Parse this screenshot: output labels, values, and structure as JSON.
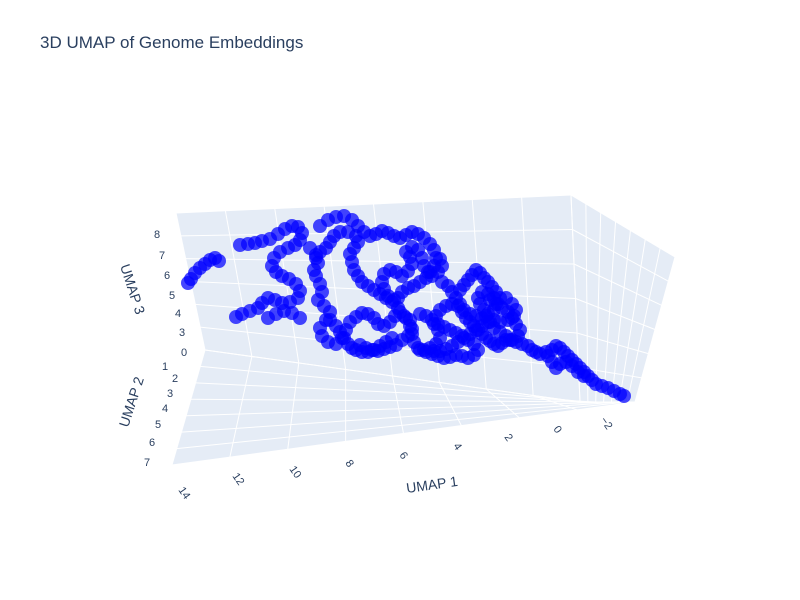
{
  "chart_data": {
    "type": "scatter3d",
    "title": "3D UMAP of Genome Embeddings",
    "axes": {
      "x": {
        "label": "UMAP 1",
        "ticks": [
          "14",
          "12",
          "10",
          "8",
          "6",
          "4",
          "2",
          "0",
          "−2"
        ]
      },
      "y": {
        "label": "UMAP 2",
        "ticks": [
          "1",
          "2",
          "3",
          "4",
          "5",
          "6",
          "7"
        ]
      },
      "z": {
        "label": "UMAP 3",
        "ticks": [
          "0",
          "3",
          "4",
          "5",
          "6",
          "7",
          "8"
        ]
      }
    },
    "marker_color": "#0000ff",
    "scene_background": "#e5ecf6",
    "grid_color": "#ffffff",
    "legend": "none",
    "projected_points": [
      [
        188,
        283
      ],
      [
        191,
        279
      ],
      [
        195,
        273
      ],
      [
        200,
        268
      ],
      [
        205,
        264
      ],
      [
        210,
        260
      ],
      [
        215,
        258
      ],
      [
        219,
        261
      ],
      [
        240,
        245
      ],
      [
        248,
        244
      ],
      [
        255,
        243
      ],
      [
        262,
        241
      ],
      [
        270,
        239
      ],
      [
        278,
        234
      ],
      [
        285,
        229
      ],
      [
        292,
        226
      ],
      [
        298,
        227
      ],
      [
        302,
        233
      ],
      [
        300,
        240
      ],
      [
        295,
        245
      ],
      [
        288,
        248
      ],
      [
        280,
        252
      ],
      [
        274,
        258
      ],
      [
        272,
        266
      ],
      [
        276,
        272
      ],
      [
        282,
        276
      ],
      [
        289,
        279
      ],
      [
        296,
        284
      ],
      [
        300,
        291
      ],
      [
        298,
        298
      ],
      [
        290,
        302
      ],
      [
        282,
        303
      ],
      [
        275,
        300
      ],
      [
        268,
        298
      ],
      [
        262,
        303
      ],
      [
        258,
        308
      ],
      [
        250,
        311
      ],
      [
        242,
        314
      ],
      [
        236,
        317
      ],
      [
        268,
        318
      ],
      [
        276,
        314
      ],
      [
        284,
        311
      ],
      [
        292,
        313
      ],
      [
        300,
        318
      ],
      [
        310,
        248
      ],
      [
        316,
        255
      ],
      [
        318,
        263
      ],
      [
        314,
        270
      ],
      [
        316,
        276
      ],
      [
        320,
        284
      ],
      [
        322,
        292
      ],
      [
        318,
        300
      ],
      [
        324,
        306
      ],
      [
        330,
        312
      ],
      [
        326,
        320
      ],
      [
        320,
        328
      ],
      [
        322,
        336
      ],
      [
        328,
        342
      ],
      [
        336,
        344
      ],
      [
        342,
        338
      ],
      [
        346,
        330
      ],
      [
        350,
        322
      ],
      [
        356,
        317
      ],
      [
        362,
        313
      ],
      [
        368,
        314
      ],
      [
        374,
        318
      ],
      [
        378,
        324
      ],
      [
        384,
        326
      ],
      [
        390,
        322
      ],
      [
        395,
        316
      ],
      [
        400,
        312
      ],
      [
        406,
        318
      ],
      [
        410,
        326
      ],
      [
        412,
        334
      ],
      [
        414,
        342
      ],
      [
        418,
        348
      ],
      [
        424,
        350
      ],
      [
        430,
        348
      ],
      [
        436,
        344
      ],
      [
        440,
        338
      ],
      [
        438,
        330
      ],
      [
        434,
        324
      ],
      [
        436,
        316
      ],
      [
        440,
        310
      ],
      [
        446,
        306
      ],
      [
        452,
        304
      ],
      [
        458,
        306
      ],
      [
        462,
        312
      ],
      [
        466,
        318
      ],
      [
        470,
        322
      ],
      [
        474,
        326
      ],
      [
        478,
        330
      ],
      [
        482,
        334
      ],
      [
        486,
        338
      ],
      [
        490,
        341
      ],
      [
        494,
        344
      ],
      [
        498,
        346
      ],
      [
        502,
        343
      ],
      [
        506,
        340
      ],
      [
        320,
        226
      ],
      [
        328,
        220
      ],
      [
        336,
        217
      ],
      [
        344,
        216
      ],
      [
        352,
        220
      ],
      [
        358,
        226
      ],
      [
        364,
        232
      ],
      [
        370,
        236
      ],
      [
        376,
        234
      ],
      [
        382,
        231
      ],
      [
        388,
        233
      ],
      [
        394,
        236
      ],
      [
        400,
        238
      ],
      [
        406,
        235
      ],
      [
        412,
        232
      ],
      [
        418,
        234
      ],
      [
        424,
        238
      ],
      [
        430,
        244
      ],
      [
        434,
        250
      ],
      [
        436,
        258
      ],
      [
        434,
        266
      ],
      [
        430,
        272
      ],
      [
        426,
        278
      ],
      [
        420,
        282
      ],
      [
        414,
        286
      ],
      [
        408,
        288
      ],
      [
        402,
        292
      ],
      [
        398,
        298
      ],
      [
        392,
        302
      ],
      [
        386,
        298
      ],
      [
        380,
        294
      ],
      [
        374,
        290
      ],
      [
        368,
        286
      ],
      [
        362,
        282
      ],
      [
        358,
        276
      ],
      [
        354,
        270
      ],
      [
        352,
        262
      ],
      [
        350,
        254
      ],
      [
        354,
        248
      ],
      [
        358,
        242
      ],
      [
        356,
        236
      ],
      [
        348,
        232
      ],
      [
        340,
        232
      ],
      [
        334,
        236
      ],
      [
        330,
        242
      ],
      [
        326,
        248
      ],
      [
        320,
        252
      ],
      [
        316,
        258
      ],
      [
        360,
        345
      ],
      [
        366,
        348
      ],
      [
        372,
        350
      ],
      [
        378,
        351
      ],
      [
        384,
        349
      ],
      [
        390,
        347
      ],
      [
        396,
        345
      ],
      [
        402,
        340
      ],
      [
        408,
        336
      ],
      [
        412,
        329
      ],
      [
        410,
        320
      ],
      [
        404,
        316
      ],
      [
        398,
        308
      ],
      [
        394,
        300
      ],
      [
        388,
        296
      ],
      [
        384,
        289
      ],
      [
        382,
        282
      ],
      [
        384,
        274
      ],
      [
        390,
        270
      ],
      [
        396,
        272
      ],
      [
        402,
        276
      ],
      [
        408,
        271
      ],
      [
        412,
        264
      ],
      [
        410,
        257
      ],
      [
        406,
        252
      ],
      [
        412,
        247
      ],
      [
        418,
        250
      ],
      [
        422,
        258
      ],
      [
        424,
        266
      ],
      [
        428,
        272
      ],
      [
        432,
        276
      ],
      [
        438,
        272
      ],
      [
        442,
        266
      ],
      [
        440,
        259
      ],
      [
        442,
        282
      ],
      [
        448,
        286
      ],
      [
        452,
        292
      ],
      [
        456,
        298
      ],
      [
        460,
        304
      ],
      [
        464,
        310
      ],
      [
        470,
        314
      ],
      [
        476,
        316
      ],
      [
        482,
        318
      ],
      [
        488,
        314
      ],
      [
        494,
        310
      ],
      [
        498,
        304
      ],
      [
        500,
        298
      ],
      [
        496,
        292
      ],
      [
        492,
        287
      ],
      [
        488,
        282
      ],
      [
        484,
        278
      ],
      [
        480,
        273
      ],
      [
        476,
        270
      ],
      [
        472,
        275
      ],
      [
        468,
        280
      ],
      [
        464,
        285
      ],
      [
        460,
        290
      ],
      [
        490,
        300
      ],
      [
        496,
        304
      ],
      [
        502,
        308
      ],
      [
        508,
        312
      ],
      [
        512,
        318
      ],
      [
        516,
        324
      ],
      [
        520,
        330
      ],
      [
        518,
        336
      ],
      [
        512,
        340
      ],
      [
        506,
        336
      ],
      [
        500,
        332
      ],
      [
        494,
        328
      ],
      [
        490,
        322
      ],
      [
        486,
        316
      ],
      [
        484,
        310
      ],
      [
        480,
        304
      ],
      [
        478,
        298
      ],
      [
        482,
        292
      ],
      [
        488,
        294
      ],
      [
        494,
        298
      ],
      [
        506,
        298
      ],
      [
        512,
        304
      ],
      [
        516,
        310
      ],
      [
        514,
        316
      ],
      [
        508,
        320
      ],
      [
        500,
        322
      ],
      [
        494,
        320
      ],
      [
        488,
        322
      ],
      [
        482,
        326
      ],
      [
        476,
        330
      ],
      [
        470,
        334
      ],
      [
        464,
        338
      ],
      [
        458,
        342
      ],
      [
        452,
        346
      ],
      [
        446,
        349
      ],
      [
        440,
        351
      ],
      [
        434,
        351
      ],
      [
        420,
        350
      ],
      [
        426,
        352
      ],
      [
        432,
        354
      ],
      [
        438,
        356
      ],
      [
        444,
        358
      ],
      [
        450,
        357
      ],
      [
        456,
        355
      ],
      [
        462,
        356
      ],
      [
        468,
        358
      ],
      [
        474,
        355
      ],
      [
        478,
        350
      ],
      [
        474,
        344
      ],
      [
        468,
        340
      ],
      [
        462,
        336
      ],
      [
        456,
        333
      ],
      [
        450,
        330
      ],
      [
        444,
        327
      ],
      [
        438,
        324
      ],
      [
        432,
        320
      ],
      [
        426,
        316
      ],
      [
        420,
        314
      ],
      [
        330,
        320
      ],
      [
        336,
        326
      ],
      [
        340,
        332
      ],
      [
        344,
        338
      ],
      [
        348,
        344
      ],
      [
        352,
        348
      ],
      [
        356,
        350
      ],
      [
        362,
        352
      ],
      [
        368,
        352
      ],
      [
        374,
        350
      ],
      [
        380,
        346
      ],
      [
        386,
        342
      ],
      [
        392,
        338
      ],
      [
        510,
        340
      ],
      [
        516,
        342
      ],
      [
        522,
        344
      ],
      [
        528,
        346
      ],
      [
        532,
        350
      ],
      [
        536,
        352
      ],
      [
        540,
        354
      ],
      [
        546,
        352
      ],
      [
        552,
        350
      ],
      [
        556,
        346
      ],
      [
        560,
        348
      ],
      [
        564,
        352
      ],
      [
        568,
        356
      ],
      [
        572,
        360
      ],
      [
        576,
        364
      ],
      [
        580,
        368
      ],
      [
        584,
        372
      ],
      [
        588,
        376
      ],
      [
        592,
        380
      ],
      [
        596,
        384
      ],
      [
        602,
        386
      ],
      [
        608,
        388
      ],
      [
        614,
        391
      ],
      [
        620,
        394
      ],
      [
        624,
        396
      ],
      [
        548,
        356
      ],
      [
        552,
        362
      ],
      [
        556,
        368
      ],
      [
        560,
        364
      ],
      [
        566,
        362
      ],
      [
        572,
        366
      ],
      [
        578,
        372
      ],
      [
        584,
        376
      ]
    ]
  }
}
